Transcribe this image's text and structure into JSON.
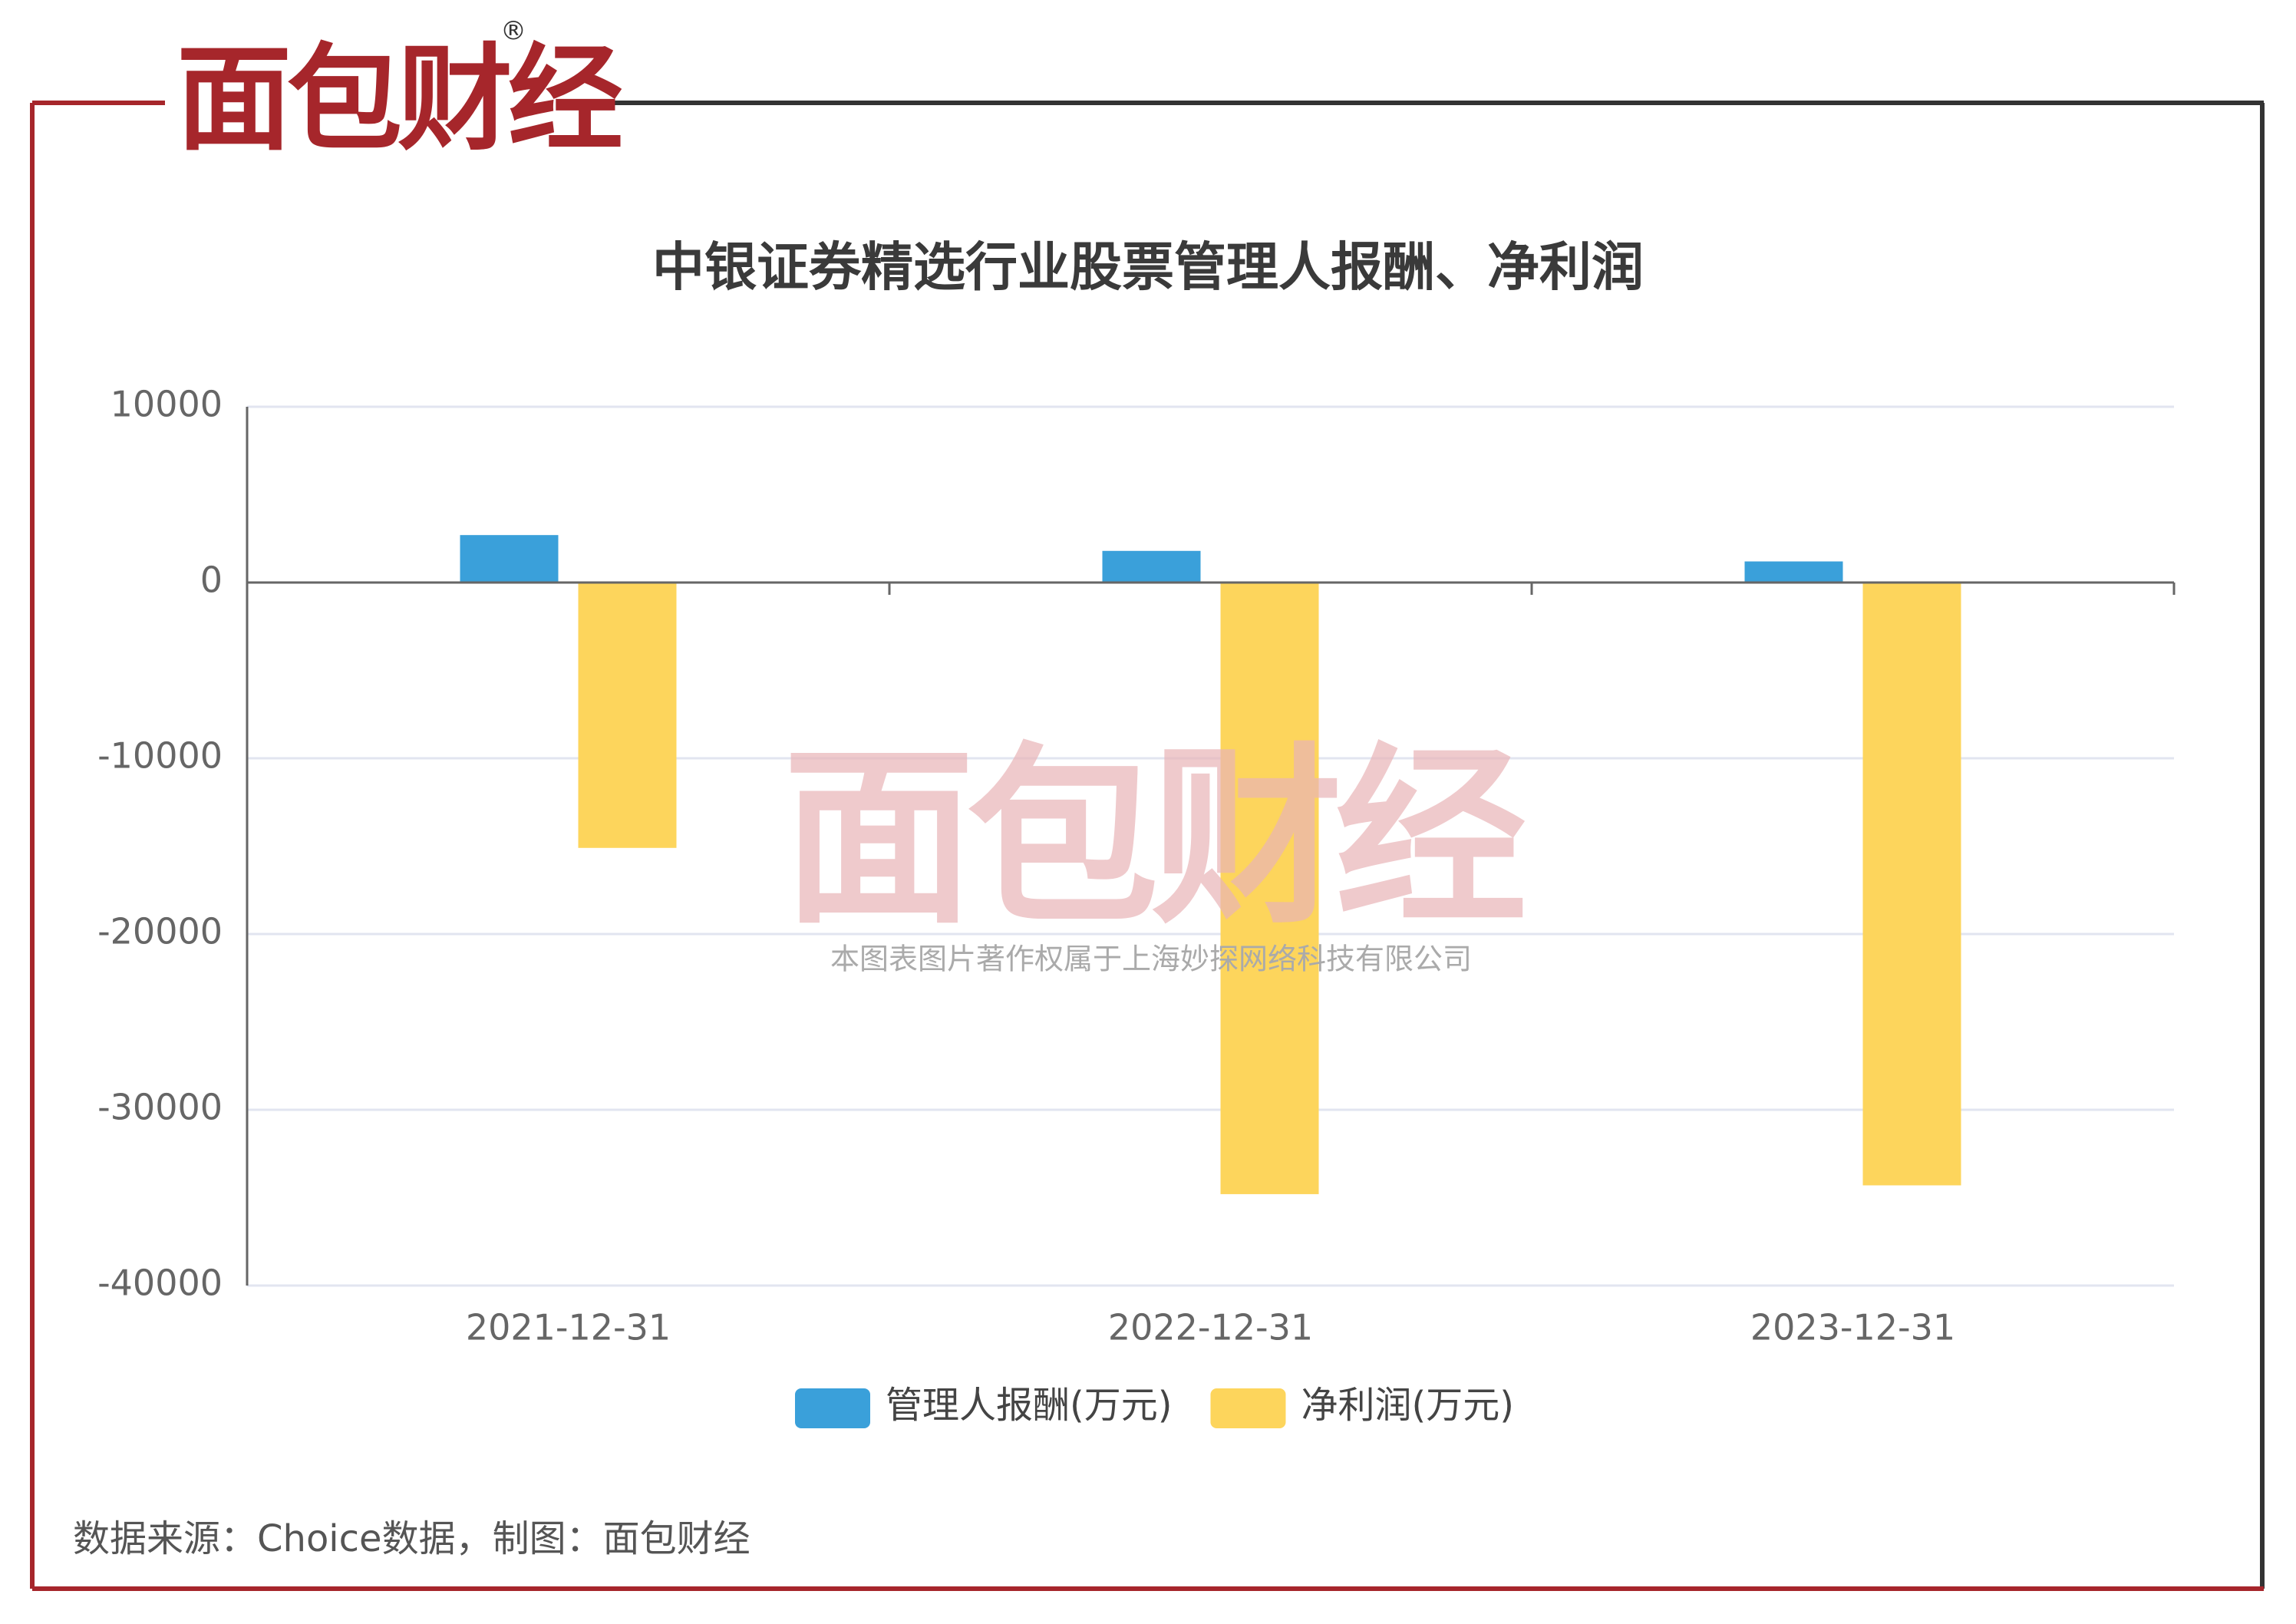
{
  "chart_data": {
    "type": "bar",
    "logo": "面包财经",
    "logo_mark": "®",
    "title": "中银证券精选行业股票管理人报酬、净利润",
    "categories": [
      "2021-12-31",
      "2022-12-31",
      "2023-12-31"
    ],
    "series": [
      {
        "name": "管理人报酬(万元)",
        "color": "#3aa0da",
        "values": [
          2700,
          1800,
          1200
        ]
      },
      {
        "name": "净利润(万元)",
        "color": "#fdd55c",
        "values": [
          -15100,
          -34800,
          -34300
        ]
      }
    ],
    "ylim": [
      -40000,
      10000
    ],
    "yticks": [
      10000,
      0,
      -10000,
      -20000,
      -30000,
      -40000
    ],
    "grid": true,
    "watermark": "本图表图片著作权属于上海妙探网络科技有限公司",
    "source": "数据来源：Choice数据，制图：面包财经"
  }
}
